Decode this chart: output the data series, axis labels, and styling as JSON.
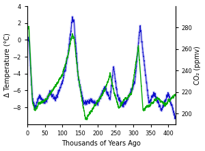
{
  "xlabel": "Thousands of Years Ago",
  "ylabel_left": "Δ Temperature (°C)",
  "ylabel_right": "CO₂ (ppmv)",
  "xlim": [
    0,
    420
  ],
  "ylim_temp": [
    -10,
    4
  ],
  "ylim_co2": [
    190,
    300
  ],
  "yticks_left": [
    -8,
    -6,
    -4,
    -2,
    0,
    2,
    4
  ],
  "yticks_right": [
    200,
    220,
    240,
    260,
    280
  ],
  "xticks": [
    0,
    50,
    100,
    150,
    200,
    250,
    300,
    350,
    400
  ],
  "temp_color_dark": "#1010cc",
  "temp_color_light": "#9999ee",
  "co2_color": "#00aa00",
  "background_color": "#ffffff",
  "linewidth_temp_dark": 0.7,
  "linewidth_temp_light": 2.5,
  "linewidth_co2": 1.0
}
